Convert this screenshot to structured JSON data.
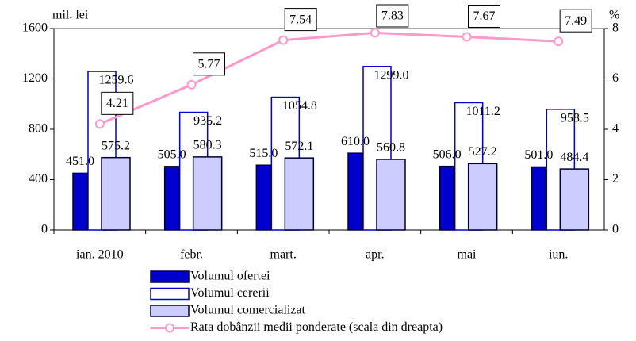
{
  "chart_data": {
    "type": "bar",
    "y_label": "mil. lei",
    "y2_label": "%",
    "categories": [
      "ian. 2010",
      "febr.",
      "mart.",
      "apr.",
      "mai",
      "iun."
    ],
    "ylim": [
      0,
      1600
    ],
    "yticks": [
      0,
      400,
      800,
      1200,
      1600
    ],
    "y2lim": [
      0,
      8
    ],
    "y2ticks": [
      0,
      2,
      4,
      6,
      8
    ],
    "legend": "bottom",
    "series": [
      {
        "name": "Volumul ofertei",
        "color": "#0000cc",
        "values": [
          451,
          505,
          515,
          610,
          506,
          501
        ],
        "value_labels": [
          "451.0",
          "505.0",
          "515.0",
          "610.0",
          "506.0",
          "501.0"
        ]
      },
      {
        "name": "Volumul cererii",
        "color": "#ffffff",
        "values": [
          1259.6,
          935.2,
          1054.8,
          1299,
          1011.2,
          958.5
        ],
        "value_labels": [
          "1259.6",
          "935.2",
          "1054.8",
          "1299.0",
          "1011.2",
          "958.5"
        ]
      },
      {
        "name": "Volumul comercializat",
        "color": "#ccccff",
        "values": [
          575.2,
          580.3,
          572.1,
          560.8,
          527.2,
          484.4
        ]
      },
      {
        "name": "Rata dobânzii medii ponderate (scala din dreapta)",
        "type": "line",
        "axis": "y2",
        "color": "#ff99cc",
        "values": [
          4.21,
          5.77,
          7.54,
          7.83,
          7.67,
          7.49
        ]
      }
    ]
  }
}
